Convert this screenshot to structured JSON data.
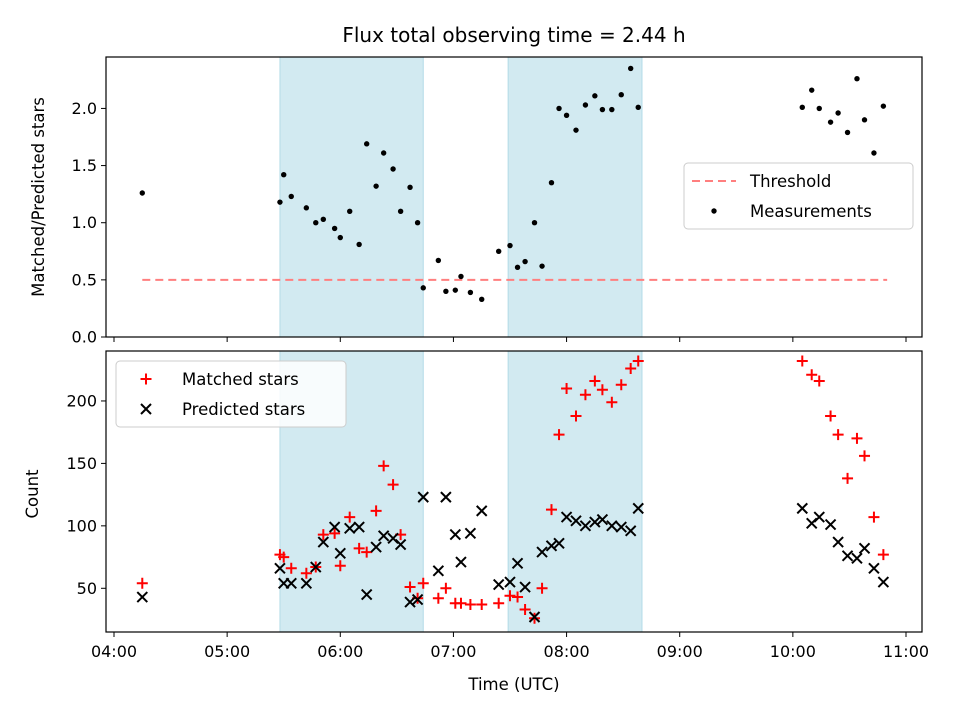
{
  "chart_data": [
    {
      "type": "scatter",
      "title": "Flux total observing time = 2.44 h",
      "ylabel": "Matched/Predicted stars",
      "xlabel": "",
      "xlim": [
        "04:00",
        "11:00"
      ],
      "ylim": [
        0,
        2.45
      ],
      "yticks": [
        0,
        0.5,
        1.0,
        1.5,
        2.0
      ],
      "ytick_labels": [
        "0.0",
        "0.5",
        "1.0",
        "1.5",
        "2.0"
      ],
      "x_tick_labels_shown": false,
      "shaded_intervals": [
        [
          "05:28",
          "06:44"
        ],
        [
          "07:29",
          "08:40"
        ]
      ],
      "shade_color": "#add8e6",
      "legend_position": "center-right",
      "series": [
        {
          "name": "Threshold",
          "kind": "line",
          "style": "dashed",
          "color": "#ff7f7f",
          "x": [
            "04:15",
            "10:50"
          ],
          "y": [
            0.5,
            0.5
          ]
        },
        {
          "name": "Measurements",
          "kind": "scatter",
          "marker": "dot",
          "color": "#000000",
          "x": [
            "04:15",
            "05:28",
            "05:30",
            "05:34",
            "05:42",
            "05:47",
            "05:51",
            "05:57",
            "06:00",
            "06:05",
            "06:10",
            "06:14",
            "06:19",
            "06:23",
            "06:28",
            "06:32",
            "06:37",
            "06:41",
            "06:44",
            "06:52",
            "06:56",
            "07:01",
            "07:04",
            "07:09",
            "07:15",
            "07:24",
            "07:30",
            "07:34",
            "07:38",
            "07:43",
            "07:47",
            "07:52",
            "07:56",
            "08:00",
            "08:05",
            "08:10",
            "08:15",
            "08:19",
            "08:24",
            "08:29",
            "08:34",
            "08:38",
            "10:05",
            "10:10",
            "10:14",
            "10:20",
            "10:24",
            "10:29",
            "10:34",
            "10:38",
            "10:43",
            "10:48"
          ],
          "y": [
            1.26,
            1.18,
            1.42,
            1.23,
            1.13,
            1.0,
            1.03,
            0.95,
            0.87,
            1.1,
            0.81,
            1.69,
            1.32,
            1.61,
            1.47,
            1.1,
            1.31,
            1.0,
            0.43,
            0.67,
            0.4,
            0.41,
            0.53,
            0.39,
            0.33,
            0.75,
            0.8,
            0.61,
            0.66,
            1.0,
            0.62,
            1.35,
            2.0,
            1.94,
            1.81,
            2.03,
            2.11,
            1.99,
            1.99,
            2.12,
            2.35,
            2.01,
            2.01,
            2.16,
            2.0,
            1.88,
            1.96,
            1.79,
            2.26,
            1.9,
            1.61,
            2.02
          ]
        }
      ]
    },
    {
      "type": "scatter",
      "title": "",
      "ylabel": "Count",
      "xlabel": "Time (UTC)",
      "xlim": [
        "04:00",
        "11:00"
      ],
      "ylim": [
        15,
        240
      ],
      "yticks": [
        50,
        100,
        150,
        200
      ],
      "ytick_labels": [
        "50",
        "100",
        "150",
        "200"
      ],
      "xticks": [
        "04:00",
        "05:00",
        "06:00",
        "07:00",
        "08:00",
        "09:00",
        "10:00",
        "11:00"
      ],
      "xtick_labels": [
        "04:00",
        "05:00",
        "06:00",
        "07:00",
        "08:00",
        "09:00",
        "10:00",
        "11:00"
      ],
      "shaded_intervals": [
        [
          "05:28",
          "06:44"
        ],
        [
          "07:29",
          "08:40"
        ]
      ],
      "shade_color": "#add8e6",
      "legend_position": "upper-left",
      "series": [
        {
          "name": "Matched stars",
          "kind": "scatter",
          "marker": "plus",
          "color": "#ff0000",
          "x": [
            "04:15",
            "05:28",
            "05:30",
            "05:34",
            "05:42",
            "05:47",
            "05:51",
            "05:57",
            "06:00",
            "06:05",
            "06:10",
            "06:14",
            "06:19",
            "06:23",
            "06:28",
            "06:32",
            "06:37",
            "06:41",
            "06:44",
            "06:52",
            "06:56",
            "07:01",
            "07:04",
            "07:09",
            "07:15",
            "07:24",
            "07:30",
            "07:34",
            "07:38",
            "07:43",
            "07:47",
            "07:52",
            "07:56",
            "08:00",
            "08:05",
            "08:10",
            "08:15",
            "08:19",
            "08:24",
            "08:29",
            "08:34",
            "08:38",
            "10:05",
            "10:10",
            "10:14",
            "10:20",
            "10:24",
            "10:29",
            "10:34",
            "10:38",
            "10:43",
            "10:48"
          ],
          "y": [
            54,
            77,
            75,
            66,
            62,
            67,
            93,
            94,
            68,
            107,
            82,
            79,
            112,
            148,
            133,
            93,
            51,
            42,
            54,
            42,
            50,
            38,
            38,
            37,
            37,
            38,
            44,
            43,
            33,
            26,
            50,
            113,
            173,
            210,
            188,
            205,
            216,
            209,
            199,
            213,
            226,
            232,
            232,
            221,
            216,
            188,
            173,
            138,
            170,
            156,
            107,
            77
          ]
        },
        {
          "name": "Predicted stars",
          "kind": "scatter",
          "marker": "x",
          "color": "#000000",
          "x": [
            "04:15",
            "05:28",
            "05:30",
            "05:34",
            "05:42",
            "05:47",
            "05:51",
            "05:57",
            "06:00",
            "06:05",
            "06:10",
            "06:14",
            "06:19",
            "06:23",
            "06:28",
            "06:32",
            "06:37",
            "06:41",
            "06:44",
            "06:52",
            "06:56",
            "07:01",
            "07:04",
            "07:09",
            "07:15",
            "07:24",
            "07:30",
            "07:34",
            "07:38",
            "07:43",
            "07:47",
            "07:52",
            "07:56",
            "08:00",
            "08:05",
            "08:10",
            "08:15",
            "08:19",
            "08:24",
            "08:29",
            "08:34",
            "08:38",
            "10:05",
            "10:10",
            "10:14",
            "10:20",
            "10:24",
            "10:29",
            "10:34",
            "10:38",
            "10:43",
            "10:48"
          ],
          "y": [
            43,
            66,
            54,
            54,
            54,
            67,
            87,
            99,
            78,
            98,
            99,
            45,
            83,
            92,
            90,
            85,
            39,
            41,
            123,
            64,
            123,
            93,
            71,
            94,
            112,
            53,
            55,
            70,
            51,
            27,
            79,
            84,
            86,
            107,
            104,
            100,
            103,
            105,
            100,
            99,
            96,
            114,
            114,
            102,
            107,
            101,
            87,
            76,
            74,
            82,
            66,
            55
          ]
        }
      ]
    }
  ]
}
